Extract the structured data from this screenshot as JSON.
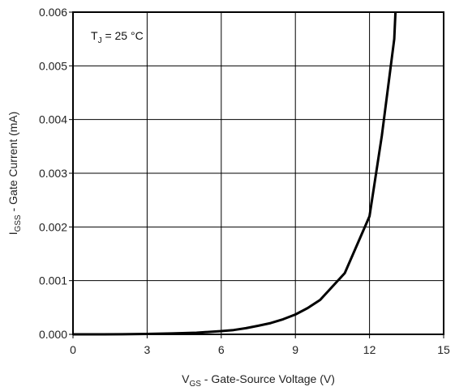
{
  "chart_data": {
    "type": "line",
    "xlabel": {
      "main": "V",
      "sub": "GS",
      "rest": " - Gate-Source Voltage (V)"
    },
    "ylabel": {
      "main": "I",
      "sub": "GSS",
      "rest": " - Gate Current (mA)"
    },
    "annotation": {
      "main": "T",
      "sub": "J",
      "rest": " = 25 °C"
    },
    "xlim": [
      0,
      15
    ],
    "ylim": [
      0,
      0.006
    ],
    "x_ticks": [
      0,
      3,
      6,
      9,
      12,
      15
    ],
    "x_tick_labels": [
      "0",
      "3",
      "6",
      "9",
      "12",
      "15"
    ],
    "y_ticks": [
      0,
      0.001,
      0.002,
      0.003,
      0.004,
      0.005,
      0.006
    ],
    "y_tick_labels": [
      "0.000",
      "0.001",
      "0.002",
      "0.003",
      "0.004",
      "0.005",
      "0.006"
    ],
    "grid": true,
    "series": [
      {
        "color": "#000000",
        "x": [
          0,
          2,
          3,
          4,
          5,
          6,
          6.5,
          7,
          7.5,
          8,
          8.5,
          9,
          9.5,
          10,
          11,
          12,
          12.5,
          13,
          13.05
        ],
        "y": [
          0,
          2e-06,
          8e-06,
          1.7e-05,
          3e-05,
          6e-05,
          8e-05,
          0.000115,
          0.00016,
          0.00021,
          0.00028,
          0.00037,
          0.00049,
          0.00064,
          0.00114,
          0.0022,
          0.0037,
          0.0055,
          0.006
        ]
      }
    ]
  }
}
